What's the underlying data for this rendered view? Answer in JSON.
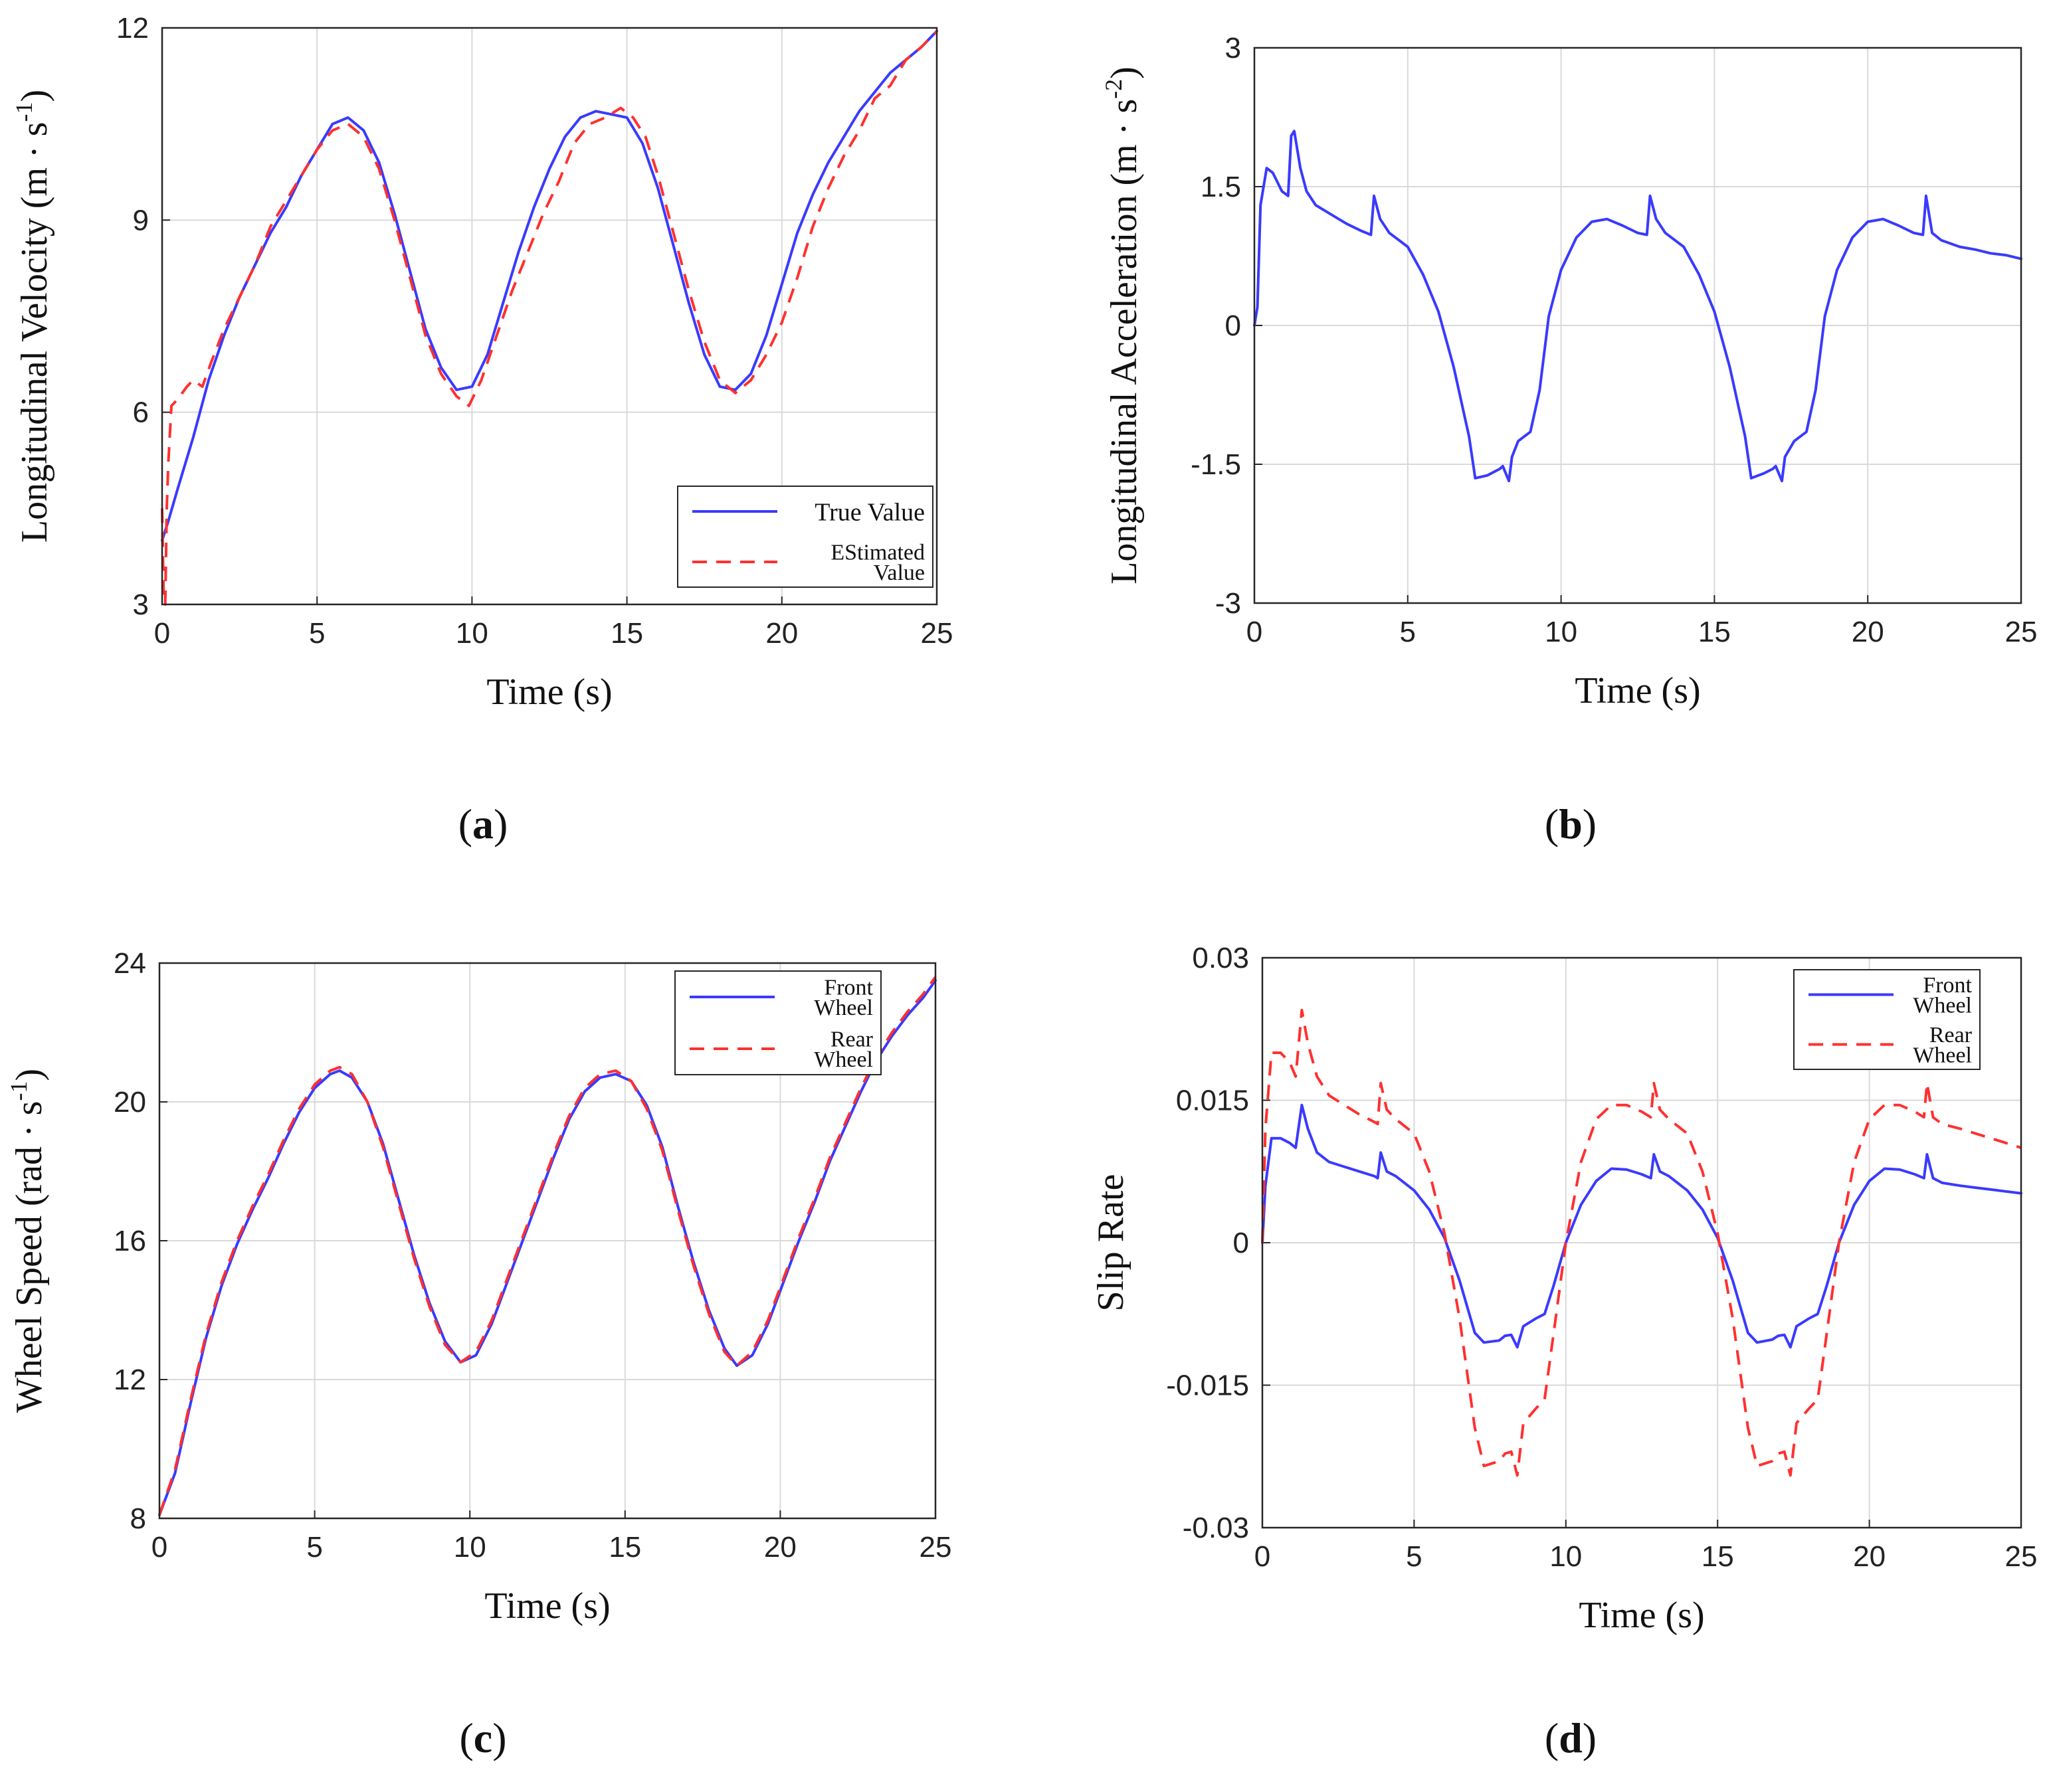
{
  "chart_data": [
    {
      "panel_label": "(a)",
      "type": "line",
      "xlabel": "Time (s)",
      "ylabel": "Longitudinal Velocity (m · s",
      "ylabel_sup": "-1",
      "ylabel_tail": ")",
      "xlim": [
        0,
        25
      ],
      "ylim": [
        3,
        12
      ],
      "xticks": [
        0,
        5,
        10,
        15,
        20,
        25
      ],
      "xtick_labels": [
        "0",
        "5",
        "10",
        "15",
        "20",
        "25"
      ],
      "yticks": [
        3,
        6,
        9,
        12
      ],
      "ytick_labels": [
        "3",
        "6",
        "9",
        "12"
      ],
      "grid": true,
      "legend_placement": "bottom-right",
      "series": [
        {
          "name": "True Value",
          "legend_lines": [
            "True Value"
          ],
          "color": "#3a3aff",
          "dash": "solid",
          "x": [
            0,
            0.2,
            0.5,
            1,
            1.5,
            2,
            2.5,
            3,
            3.5,
            4,
            4.5,
            5,
            5.5,
            6,
            6.5,
            7,
            7.5,
            8,
            8.5,
            9,
            9.5,
            10,
            10.5,
            11,
            11.5,
            12,
            12.5,
            13,
            13.5,
            14,
            14.5,
            15,
            15.5,
            16,
            16.5,
            17,
            17.5,
            18,
            18.5,
            19,
            19.5,
            20,
            20.5,
            21,
            21.5,
            22,
            22.5,
            23,
            23.5,
            24,
            24.5,
            25
          ],
          "y": [
            4.0,
            4.3,
            4.8,
            5.6,
            6.5,
            7.2,
            7.8,
            8.3,
            8.8,
            9.2,
            9.7,
            10.1,
            10.5,
            10.6,
            10.4,
            9.9,
            9.1,
            8.2,
            7.3,
            6.7,
            6.35,
            6.4,
            6.9,
            7.7,
            8.5,
            9.2,
            9.8,
            10.3,
            10.6,
            10.7,
            10.65,
            10.6,
            10.2,
            9.5,
            8.6,
            7.7,
            6.9,
            6.4,
            6.35,
            6.6,
            7.2,
            8.0,
            8.8,
            9.4,
            9.9,
            10.3,
            10.7,
            11.0,
            11.3,
            11.5,
            11.7,
            11.95
          ]
        },
        {
          "name": "EStimated Value",
          "legend_lines": [
            "EStimated",
            "Value"
          ],
          "color": "#ff3030",
          "dash": "dashed",
          "x": [
            0,
            0.05,
            0.1,
            0.15,
            0.2,
            0.3,
            0.5,
            0.8,
            1,
            1.3,
            1.6,
            2,
            2.5,
            3,
            3.5,
            4,
            4.5,
            5,
            5.5,
            6,
            6.5,
            7,
            7.5,
            8,
            8.5,
            9,
            9.5,
            9.9,
            10.3,
            10.8,
            11.3,
            11.8,
            12.3,
            12.8,
            13.3,
            13.8,
            14.3,
            14.8,
            15.2,
            15.6,
            16,
            16.5,
            17,
            17.5,
            18,
            18.5,
            19,
            19.5,
            20,
            20.5,
            21,
            21.5,
            22,
            22.5,
            23,
            23.5,
            24,
            24.5,
            25
          ],
          "y": [
            4.5,
            3.1,
            3.0,
            4.5,
            5.2,
            6.1,
            6.2,
            6.4,
            6.5,
            6.4,
            6.8,
            7.3,
            7.8,
            8.3,
            8.9,
            9.3,
            9.7,
            10.1,
            10.4,
            10.5,
            10.3,
            9.8,
            9.0,
            8.1,
            7.2,
            6.6,
            6.25,
            6.1,
            6.5,
            7.2,
            7.9,
            8.5,
            9.1,
            9.6,
            10.2,
            10.5,
            10.6,
            10.75,
            10.6,
            10.3,
            9.7,
            8.8,
            7.9,
            7.1,
            6.5,
            6.3,
            6.5,
            6.9,
            7.4,
            8.1,
            8.9,
            9.5,
            10.0,
            10.4,
            10.9,
            11.1,
            11.5,
            11.7,
            11.95
          ]
        }
      ]
    },
    {
      "panel_label": "(b)",
      "type": "line",
      "xlabel": "Time (s)",
      "ylabel": "Longitudinal Acceleration (m · s",
      "ylabel_sup": "-2",
      "ylabel_tail": ")",
      "xlim": [
        0,
        25
      ],
      "ylim": [
        -3,
        3
      ],
      "xticks": [
        0,
        5,
        10,
        15,
        20,
        25
      ],
      "xtick_labels": [
        "0",
        "5",
        "10",
        "15",
        "20",
        "25"
      ],
      "yticks": [
        -3,
        -1.5,
        0,
        1.5,
        3
      ],
      "ytick_labels": [
        "-3",
        "-1.5",
        "0",
        "1.5",
        "3"
      ],
      "grid": true,
      "legend_placement": "none",
      "series": [
        {
          "color": "#3a3aff",
          "dash": "solid",
          "x": [
            0,
            0.1,
            0.2,
            0.4,
            0.6,
            0.9,
            1.1,
            1.2,
            1.3,
            1.5,
            1.7,
            2.0,
            2.5,
            3.0,
            3.5,
            3.8,
            3.9,
            4.1,
            4.4,
            5.0,
            5.5,
            6.0,
            6.5,
            7.0,
            7.2,
            7.6,
            8.0,
            8.1,
            8.3,
            8.4,
            8.6,
            9.0,
            9.3,
            9.6,
            10.0,
            10.5,
            11.0,
            11.5,
            12.0,
            12.5,
            12.8,
            12.9,
            13.1,
            13.4,
            14.0,
            14.5,
            15.0,
            15.5,
            16.0,
            16.2,
            16.6,
            16.9,
            17.0,
            17.2,
            17.3,
            17.6,
            18.0,
            18.3,
            18.6,
            19.0,
            19.5,
            20.0,
            20.5,
            21.0,
            21.5,
            21.8,
            21.9,
            22.1,
            22.4,
            23.0,
            23.5,
            24.0,
            24.5,
            25.0
          ],
          "y": [
            0,
            0.2,
            1.3,
            1.7,
            1.65,
            1.45,
            1.4,
            2.05,
            2.1,
            1.7,
            1.45,
            1.3,
            1.2,
            1.1,
            1.02,
            0.98,
            1.4,
            1.15,
            1.0,
            0.85,
            0.55,
            0.15,
            -0.45,
            -1.2,
            -1.65,
            -1.62,
            -1.55,
            -1.52,
            -1.68,
            -1.42,
            -1.25,
            -1.15,
            -0.7,
            0.1,
            0.6,
            0.95,
            1.12,
            1.15,
            1.08,
            1.0,
            0.98,
            1.4,
            1.15,
            1.0,
            0.85,
            0.55,
            0.15,
            -0.45,
            -1.2,
            -1.65,
            -1.6,
            -1.55,
            -1.52,
            -1.68,
            -1.42,
            -1.25,
            -1.15,
            -0.7,
            0.1,
            0.6,
            0.95,
            1.12,
            1.15,
            1.08,
            1.0,
            0.98,
            1.4,
            1.0,
            0.92,
            0.85,
            0.82,
            0.78,
            0.76,
            0.72
          ]
        }
      ]
    },
    {
      "panel_label": "(c)",
      "type": "line",
      "xlabel": "Time (s)",
      "ylabel": "Wheel Speed (rad · s",
      "ylabel_sup": "-1",
      "ylabel_tail": ")",
      "xlim": [
        0,
        25
      ],
      "ylim": [
        8,
        24
      ],
      "xticks": [
        0,
        5,
        10,
        15,
        20,
        25
      ],
      "xtick_labels": [
        "0",
        "5",
        "10",
        "15",
        "20",
        "25"
      ],
      "yticks": [
        8,
        12,
        16,
        20,
        24
      ],
      "ytick_labels": [
        "8",
        "12",
        "16",
        "20",
        "24"
      ],
      "grid": true,
      "legend_placement": "top-right",
      "series": [
        {
          "name": "Front Wheel",
          "legend_lines": [
            "Front",
            "Wheel"
          ],
          "color": "#3a3aff",
          "dash": "solid",
          "x": [
            0,
            0.5,
            1,
            1.5,
            2,
            2.5,
            3,
            3.5,
            4,
            4.5,
            5,
            5.5,
            5.8,
            6.2,
            6.7,
            7.2,
            7.7,
            8.2,
            8.7,
            9.2,
            9.7,
            10.2,
            10.7,
            11.2,
            11.7,
            12.2,
            12.7,
            13.2,
            13.7,
            14.2,
            14.7,
            15.2,
            15.7,
            16.2,
            16.7,
            17.2,
            17.7,
            18.2,
            18.6,
            19.1,
            19.6,
            20.1,
            20.6,
            21.1,
            21.6,
            22.1,
            22.6,
            23.1,
            23.6,
            24.1,
            24.6,
            25
          ],
          "y": [
            8.1,
            9.3,
            11.3,
            13.2,
            14.7,
            15.9,
            16.9,
            17.8,
            18.8,
            19.7,
            20.4,
            20.8,
            20.9,
            20.7,
            20.0,
            18.8,
            17.2,
            15.6,
            14.2,
            13.1,
            12.5,
            12.7,
            13.6,
            14.8,
            16.0,
            17.2,
            18.4,
            19.5,
            20.3,
            20.7,
            20.8,
            20.6,
            19.9,
            18.7,
            17.0,
            15.4,
            14.0,
            12.9,
            12.4,
            12.7,
            13.6,
            14.8,
            16.0,
            17.1,
            18.3,
            19.3,
            20.3,
            21.2,
            21.9,
            22.5,
            23.0,
            23.5
          ]
        },
        {
          "name": "Rear Wheel",
          "legend_lines": [
            "Rear",
            "Wheel"
          ],
          "color": "#ff3030",
          "dash": "dashed",
          "x": [
            0,
            0.5,
            1,
            1.5,
            2,
            2.5,
            3,
            3.5,
            4,
            4.5,
            5,
            5.5,
            5.8,
            6.2,
            6.7,
            7.2,
            7.7,
            8.2,
            8.7,
            9.2,
            9.7,
            10.2,
            10.7,
            11.2,
            11.7,
            12.2,
            12.7,
            13.2,
            13.7,
            14.2,
            14.7,
            15.2,
            15.7,
            16.2,
            16.7,
            17.2,
            17.7,
            18.2,
            18.6,
            19.1,
            19.6,
            20.1,
            20.6,
            21.1,
            21.6,
            22.1,
            22.6,
            23.1,
            23.6,
            24.1,
            24.6,
            25
          ],
          "y": [
            8.1,
            9.4,
            11.4,
            13.3,
            14.8,
            16.0,
            17.0,
            17.9,
            18.9,
            19.8,
            20.5,
            20.9,
            21.0,
            20.8,
            20.0,
            18.7,
            17.1,
            15.5,
            14.1,
            13.0,
            12.5,
            12.8,
            13.7,
            14.9,
            16.1,
            17.3,
            18.5,
            19.6,
            20.4,
            20.8,
            20.9,
            20.6,
            19.8,
            18.6,
            16.9,
            15.3,
            13.9,
            12.8,
            12.4,
            12.8,
            13.7,
            14.9,
            16.1,
            17.2,
            18.4,
            19.4,
            20.4,
            21.3,
            22.0,
            22.6,
            23.1,
            23.6
          ]
        }
      ]
    },
    {
      "panel_label": "(d)",
      "type": "line",
      "xlabel": "Time (s)",
      "ylabel": "Slip Rate",
      "ylabel_sup": "",
      "ylabel_tail": "",
      "xlim": [
        0,
        25
      ],
      "ylim": [
        -0.03,
        0.03
      ],
      "xticks": [
        0,
        5,
        10,
        15,
        20,
        25
      ],
      "xtick_labels": [
        "0",
        "5",
        "10",
        "15",
        "20",
        "25"
      ],
      "yticks": [
        -0.03,
        -0.015,
        0,
        0.015,
        0.03
      ],
      "ytick_labels": [
        "-0.03",
        "-0.015",
        "0",
        "0.015",
        "0.03"
      ],
      "grid": true,
      "legend_placement": "top-right",
      "series": [
        {
          "name": "Front Wheel",
          "legend_lines": [
            "Front",
            "Wheel"
          ],
          "color": "#3a3aff",
          "dash": "solid",
          "x": [
            0,
            0.1,
            0.3,
            0.6,
            0.9,
            1.1,
            1.3,
            1.5,
            1.8,
            2.2,
            2.7,
            3.2,
            3.7,
            3.8,
            3.9,
            4.1,
            4.4,
            5.0,
            5.5,
            6.0,
            6.5,
            7.0,
            7.3,
            7.8,
            8.0,
            8.2,
            8.4,
            8.6,
            9.0,
            9.3,
            9.6,
            10.0,
            10.5,
            11.0,
            11.5,
            12.0,
            12.5,
            12.8,
            12.9,
            13.1,
            13.4,
            14.0,
            14.5,
            15.0,
            15.5,
            16.0,
            16.3,
            16.8,
            17.0,
            17.2,
            17.4,
            17.6,
            18.0,
            18.3,
            18.6,
            19.0,
            19.5,
            20.0,
            20.5,
            21.0,
            21.5,
            21.8,
            21.9,
            22.1,
            22.4,
            23.0,
            23.5,
            24.0,
            24.5,
            25.0
          ],
          "y": [
            0,
            0.006,
            0.011,
            0.011,
            0.0105,
            0.01,
            0.0145,
            0.012,
            0.0095,
            0.0085,
            0.008,
            0.0075,
            0.007,
            0.0068,
            0.0095,
            0.0075,
            0.007,
            0.0055,
            0.0035,
            0.0005,
            -0.004,
            -0.0095,
            -0.0105,
            -0.0103,
            -0.0098,
            -0.0097,
            -0.011,
            -0.0088,
            -0.008,
            -0.0075,
            -0.0045,
            0,
            0.004,
            0.0065,
            0.0078,
            0.0077,
            0.0072,
            0.0068,
            0.0093,
            0.0075,
            0.007,
            0.0055,
            0.0035,
            0.0005,
            -0.004,
            -0.0095,
            -0.0105,
            -0.0102,
            -0.0098,
            -0.0097,
            -0.011,
            -0.0088,
            -0.008,
            -0.0075,
            -0.0045,
            0,
            0.004,
            0.0065,
            0.0078,
            0.0077,
            0.0072,
            0.0068,
            0.0093,
            0.0068,
            0.0063,
            0.006,
            0.0058,
            0.0056,
            0.0054,
            0.0052
          ]
        },
        {
          "name": "Rear Wheel",
          "legend_lines": [
            "Rear",
            "Wheel"
          ],
          "color": "#ff3030",
          "dash": "dashed",
          "x": [
            0,
            0.1,
            0.3,
            0.6,
            0.9,
            1.1,
            1.3,
            1.5,
            1.8,
            2.2,
            2.7,
            3.2,
            3.7,
            3.8,
            3.9,
            4.1,
            4.4,
            5.0,
            5.5,
            6.0,
            6.5,
            7.0,
            7.3,
            7.8,
            8.0,
            8.2,
            8.4,
            8.6,
            9.0,
            9.3,
            9.6,
            10.0,
            10.5,
            11.0,
            11.5,
            12.0,
            12.5,
            12.8,
            12.9,
            13.1,
            13.4,
            14.0,
            14.5,
            15.0,
            15.5,
            16.0,
            16.3,
            16.8,
            17.0,
            17.2,
            17.4,
            17.6,
            18.0,
            18.3,
            18.6,
            19.0,
            19.5,
            20.0,
            20.5,
            21.0,
            21.5,
            21.8,
            21.9,
            22.1,
            22.4,
            23.0,
            23.5,
            24.0,
            24.5,
            25.0
          ],
          "y": [
            0,
            0.012,
            0.02,
            0.02,
            0.019,
            0.0175,
            0.0245,
            0.021,
            0.0175,
            0.0155,
            0.0145,
            0.0135,
            0.0127,
            0.0125,
            0.0168,
            0.014,
            0.013,
            0.0115,
            0.0075,
            0.001,
            -0.008,
            -0.0195,
            -0.0235,
            -0.023,
            -0.0222,
            -0.022,
            -0.0245,
            -0.019,
            -0.0175,
            -0.0165,
            -0.0095,
            0,
            0.0085,
            0.013,
            0.0145,
            0.0145,
            0.0138,
            0.0132,
            0.0168,
            0.014,
            0.013,
            0.0115,
            0.0075,
            0.001,
            -0.008,
            -0.0195,
            -0.0235,
            -0.023,
            -0.0222,
            -0.022,
            -0.0245,
            -0.019,
            -0.0175,
            -0.0165,
            -0.0095,
            0,
            0.0085,
            0.013,
            0.0145,
            0.0145,
            0.0138,
            0.0132,
            0.0168,
            0.0132,
            0.0125,
            0.012,
            0.0115,
            0.011,
            0.0105,
            0.01
          ]
        }
      ]
    }
  ]
}
